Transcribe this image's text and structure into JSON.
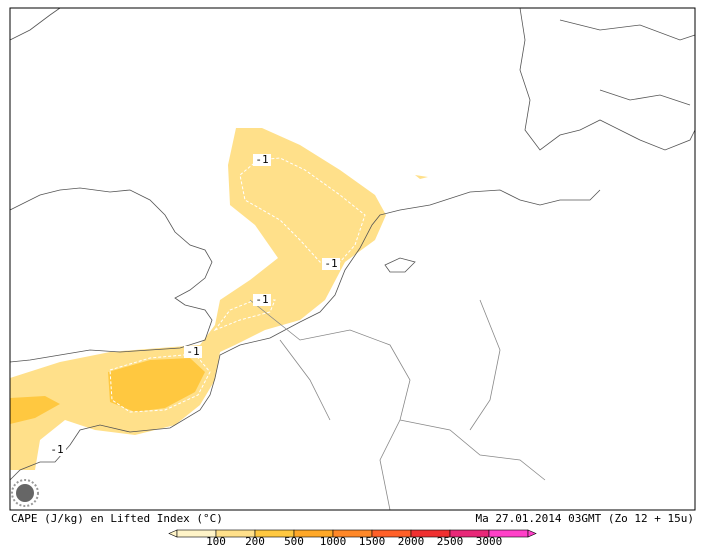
{
  "map": {
    "contour_labels": [
      "-1",
      "-1",
      "-1",
      "-1",
      "-1"
    ]
  },
  "footer": {
    "title": "CAPE (J/kg) en Lifted Index (°C)",
    "date": "Ma 27.01.2014 03GMT (Zo 12 + 15u)"
  },
  "legend": {
    "labels": [
      "100",
      "200",
      "500",
      "1000",
      "1500",
      "2000",
      "2500",
      "3000"
    ],
    "colors": [
      "#fff4c8",
      "#ffe08a",
      "#ffc840",
      "#ffa828",
      "#ff8828",
      "#ff6028",
      "#f03030",
      "#e82878",
      "#ff40c8"
    ]
  }
}
